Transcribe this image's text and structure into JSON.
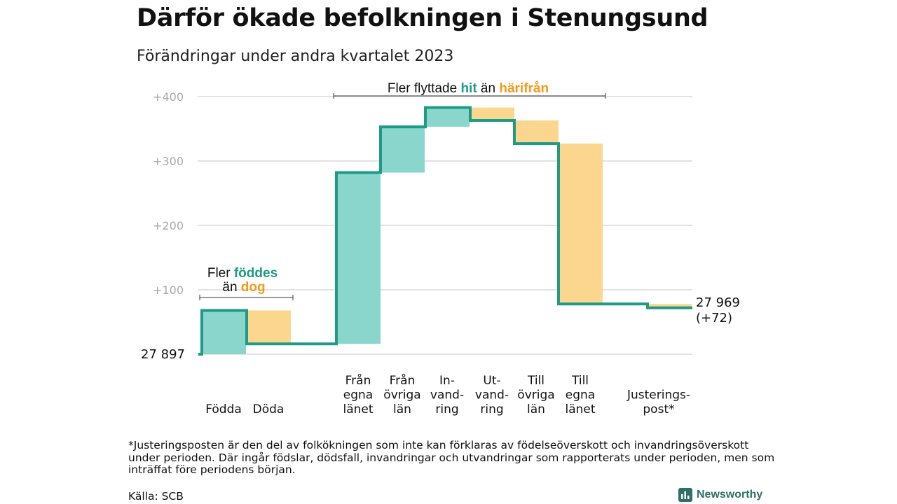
{
  "title": "Därför ökade befolkningen i Stenungsund",
  "subtitle": "Förändringar under andra kvartalet 2023",
  "footnote": "*Justeringsposten är den del av folkökningen som inte kan förklaras av födelseöverskott och invandringsöverskott under perioden. Där ingår födslar, dödsfall, invandringar och utvandringar som rapporterats under perioden, men som inträffat före periodens början.",
  "source": "Källa: SCB",
  "brand": "Newsworthy",
  "colors": {
    "increase": "#8ad6cc",
    "decrease": "#fbd68f",
    "line": "#1f9a87",
    "accent_orange": "#f39a1d",
    "grid": "#d9d9d9",
    "tick": "#a8a8a8"
  },
  "chart_data": {
    "type": "waterfall",
    "start_label": "27 897",
    "end_label": "27 969",
    "end_change_label": "(+72)",
    "y_ticks": [
      "+400",
      "+300",
      "+200",
      "+100"
    ],
    "y_tick_values": [
      400,
      300,
      200,
      100
    ],
    "ylim": [
      0,
      400
    ],
    "steps": [
      {
        "label": "Födda",
        "delta": 68,
        "type": "increase"
      },
      {
        "label": "Döda",
        "delta": -52,
        "type": "decrease"
      },
      {
        "label": "Från egna länet",
        "delta": 266,
        "type": "increase"
      },
      {
        "label": "Från övriga län",
        "delta": 71,
        "type": "increase"
      },
      {
        "label": "Invandring",
        "delta": 30,
        "type": "increase"
      },
      {
        "label": "Utvandring",
        "delta": -20,
        "type": "decrease"
      },
      {
        "label": "Till övriga län",
        "delta": -36,
        "type": "decrease"
      },
      {
        "label": "Till egna länet",
        "delta": -249,
        "type": "decrease"
      },
      {
        "label": "Justeringspost*",
        "delta": -6,
        "type": "decrease"
      }
    ],
    "x_labels": [
      [
        "Födda"
      ],
      [
        "Döda"
      ],
      [
        "Från",
        "egna",
        "länet"
      ],
      [
        "Från",
        "övriga",
        "län"
      ],
      [
        "In-",
        "vand-",
        "ring"
      ],
      [
        "Ut-",
        "vand-",
        "ring"
      ],
      [
        "Till",
        "övriga",
        "län"
      ],
      [
        "Till",
        "egna",
        "länet"
      ],
      [
        "Justerings-",
        "post*"
      ]
    ],
    "annotations": {
      "births": {
        "line1": "Fler ",
        "word_green": "föddes",
        "prefix2": "än ",
        "word_orange": "dog"
      },
      "migration": {
        "prefix": "Fler flyttade ",
        "word_green": "hit",
        "middle": " än ",
        "word_orange": "härifrån"
      }
    }
  }
}
